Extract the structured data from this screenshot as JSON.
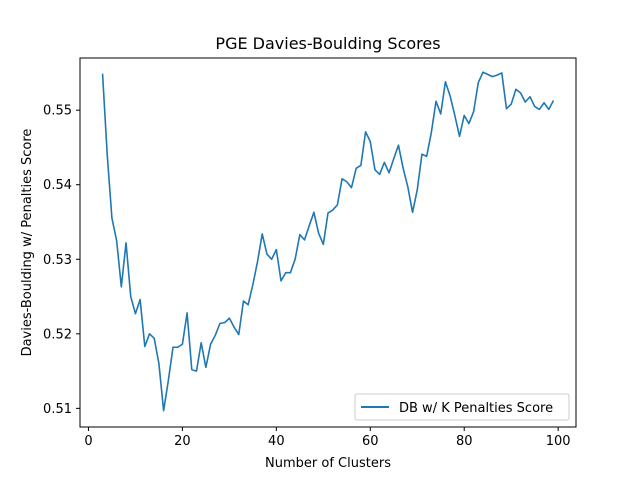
{
  "chart_data": {
    "type": "line",
    "title": "PGE Davies-Boulding Scores",
    "xlabel": "Number of Clusters",
    "ylabel": "Davies-Boulding w/ Penalties Score",
    "xlim": [
      -1.8,
      103.8
    ],
    "ylim": [
      0.5075,
      0.557
    ],
    "xticks": [
      0,
      20,
      40,
      60,
      80,
      100
    ],
    "yticks": [
      0.51,
      0.52,
      0.53,
      0.54,
      0.55
    ],
    "grid": false,
    "legend_position": "lower-right",
    "series": [
      {
        "name": "DB w/ K Penalties Score",
        "color": "#1f77b4",
        "x": [
          3,
          4,
          5,
          6,
          7,
          8,
          9,
          10,
          11,
          12,
          13,
          14,
          15,
          16,
          17,
          18,
          19,
          20,
          21,
          22,
          23,
          24,
          25,
          26,
          27,
          28,
          29,
          30,
          31,
          32,
          33,
          34,
          35,
          36,
          37,
          38,
          39,
          40,
          41,
          42,
          43,
          44,
          45,
          46,
          47,
          48,
          49,
          50,
          51,
          52,
          53,
          54,
          55,
          56,
          57,
          58,
          59,
          60,
          61,
          62,
          63,
          64,
          65,
          66,
          67,
          68,
          69,
          70,
          71,
          72,
          73,
          74,
          75,
          76,
          77,
          78,
          79,
          80,
          81,
          82,
          83,
          84,
          85,
          86,
          87,
          88,
          89,
          90,
          91,
          92,
          93,
          94,
          95,
          96,
          97,
          98,
          99
        ],
        "y": [
          0.5549,
          0.544,
          0.5355,
          0.5325,
          0.5263,
          0.5322,
          0.525,
          0.5227,
          0.5246,
          0.5183,
          0.52,
          0.5194,
          0.516,
          0.5097,
          0.5137,
          0.5182,
          0.5182,
          0.5186,
          0.5228,
          0.5152,
          0.515,
          0.5188,
          0.5155,
          0.5186,
          0.5198,
          0.5214,
          0.5215,
          0.5221,
          0.5209,
          0.5199,
          0.5244,
          0.5239,
          0.5266,
          0.5297,
          0.5334,
          0.5307,
          0.53,
          0.5313,
          0.5271,
          0.5282,
          0.5282,
          0.53,
          0.5333,
          0.5326,
          0.5345,
          0.5363,
          0.5335,
          0.532,
          0.5362,
          0.5366,
          0.5373,
          0.5408,
          0.5404,
          0.5396,
          0.5422,
          0.5426,
          0.5471,
          0.5458,
          0.542,
          0.5414,
          0.543,
          0.5416,
          0.5435,
          0.5453,
          0.5422,
          0.5397,
          0.5363,
          0.5393,
          0.5441,
          0.5438,
          0.547,
          0.5512,
          0.5495,
          0.5538,
          0.5519,
          0.5493,
          0.5465,
          0.5493,
          0.5482,
          0.5498,
          0.5537,
          0.5551,
          0.5548,
          0.5545,
          0.5547,
          0.555,
          0.5502,
          0.5508,
          0.5528,
          0.5523,
          0.5511,
          0.5518,
          0.5505,
          0.5501,
          0.551,
          0.5501,
          0.5513
        ]
      }
    ]
  }
}
